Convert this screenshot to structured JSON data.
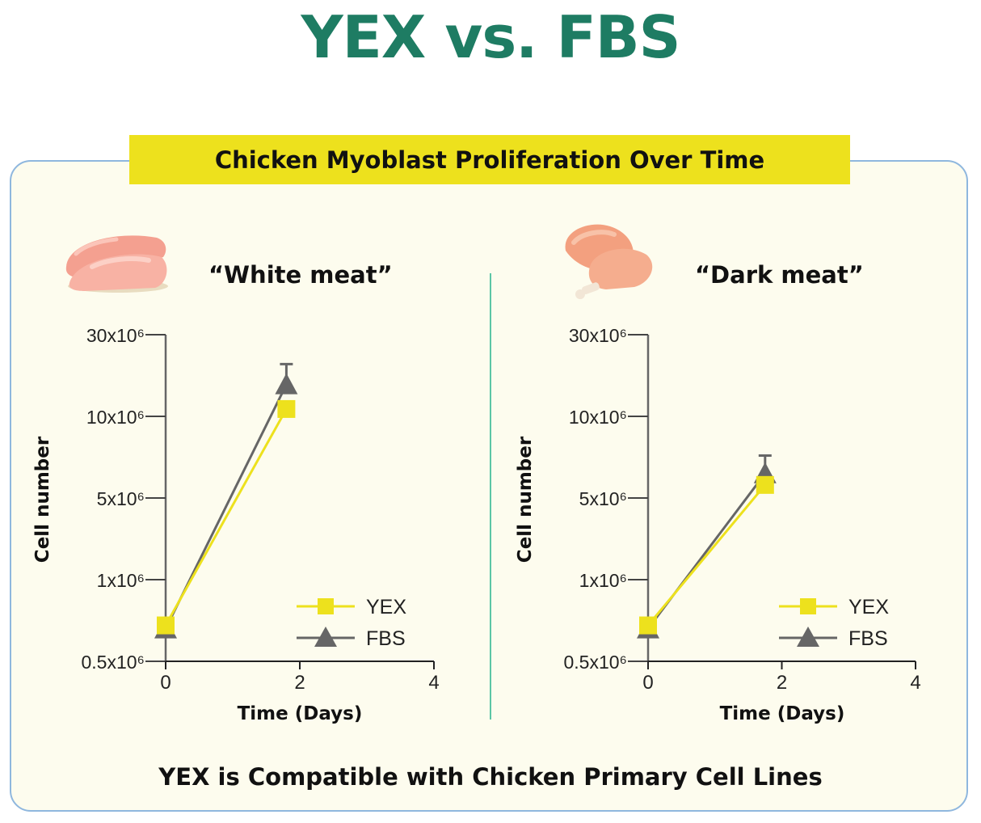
{
  "title": "YEX vs. FBS",
  "banner": "Chicken Myoblast Proliferation Over Time",
  "footer": "YEX is Compatible with Chicken Primary Cell Lines",
  "colors": {
    "title": "#1e7c63",
    "banner": "#ede11d",
    "yex": "#ede11d",
    "fbs": "#666666",
    "divider": "#5cc6a6",
    "border": "#8fb7de"
  },
  "icons": {
    "left": "chicken-breast-icon",
    "right": "chicken-drumstick-icon"
  },
  "chart_data": [
    {
      "type": "line",
      "title": "“White meat”",
      "xlabel": "Time (Days)",
      "ylabel": "Cell number",
      "xlim": [
        0,
        4
      ],
      "xticks": [
        0,
        2,
        4
      ],
      "yscale": "piecewise, equally spaced ticks",
      "yticks": [
        500000.0,
        1000000.0,
        5000000.0,
        10000000.0,
        30000000.0
      ],
      "ytick_labels": [
        "0.5x10⁶",
        "1x10⁶",
        "5x10⁶",
        "10x10⁶",
        "30x10⁶"
      ],
      "legend": "bottom-right",
      "series": [
        {
          "name": "YEX",
          "marker": "square",
          "x": [
            0,
            1.8
          ],
          "y": [
            720000.0,
            11800000.0
          ]
        },
        {
          "name": "FBS",
          "marker": "triangle",
          "x": [
            0,
            1.8
          ],
          "y": [
            700000.0,
            17800000.0
          ],
          "error_upper": [
            0,
            5000000.0
          ]
        }
      ]
    },
    {
      "type": "line",
      "title": "“Dark meat”",
      "xlabel": "Time (Days)",
      "ylabel": "Cell number",
      "xlim": [
        0,
        4
      ],
      "xticks": [
        0,
        2,
        4
      ],
      "yscale": "piecewise, equally spaced ticks",
      "yticks": [
        500000.0,
        1000000.0,
        5000000.0,
        10000000.0,
        30000000.0
      ],
      "ytick_labels": [
        "0.5x10⁶",
        "1x10⁶",
        "5x10⁶",
        "10x10⁶",
        "30x10⁶"
      ],
      "legend": "bottom-right",
      "series": [
        {
          "name": "YEX",
          "marker": "square",
          "x": [
            0,
            1.75
          ],
          "y": [
            720000.0,
            5800000.0
          ]
        },
        {
          "name": "FBS",
          "marker": "triangle",
          "x": [
            0,
            1.75
          ],
          "y": [
            700000.0,
            6500000.0
          ],
          "error_upper": [
            0,
            1100000.0
          ]
        }
      ]
    }
  ]
}
